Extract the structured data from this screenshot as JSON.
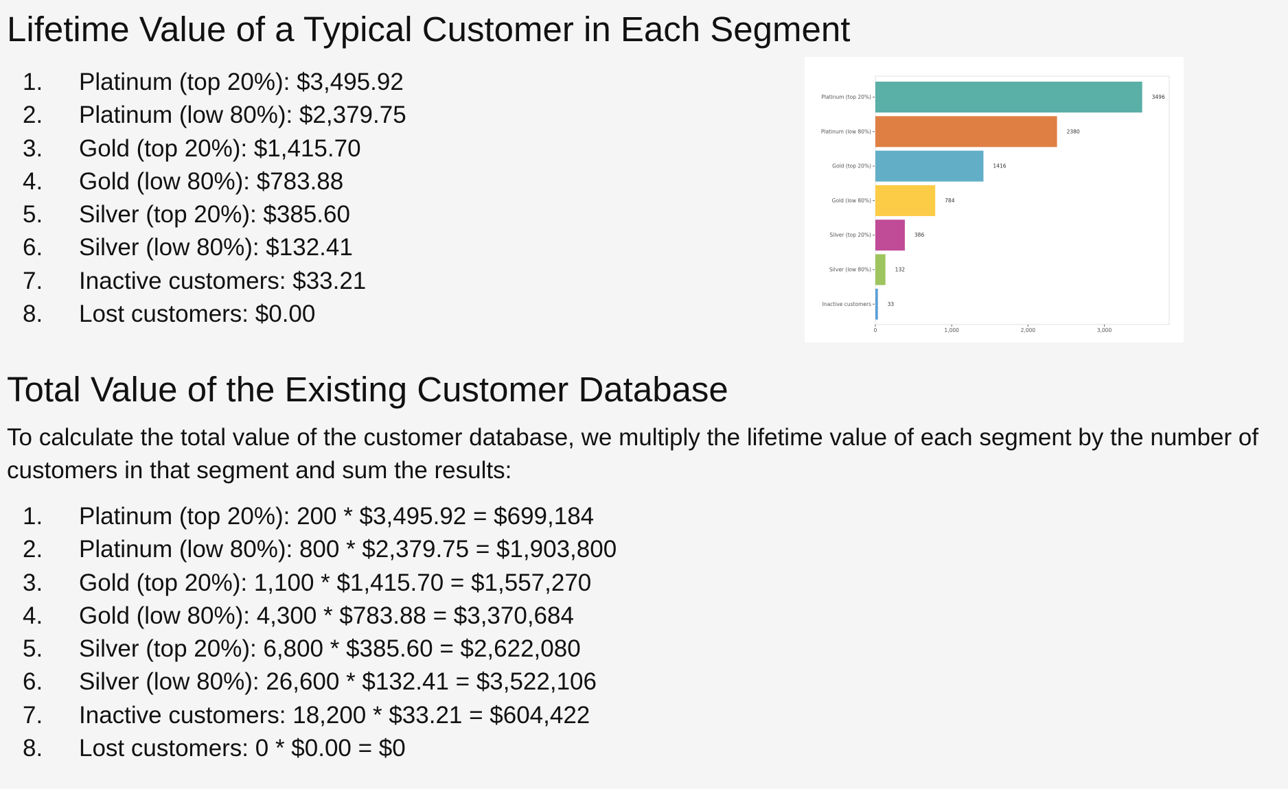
{
  "section1": {
    "title": "Lifetime Value of a Typical Customer in Each Segment",
    "items": [
      {
        "num": "1.",
        "text": "Platinum (top 20%): $3,495.92"
      },
      {
        "num": "2.",
        "text": "Platinum (low 80%): $2,379.75"
      },
      {
        "num": "3.",
        "text": "Gold (top 20%): $1,415.70"
      },
      {
        "num": "4.",
        "text": "Gold (low 80%): $783.88"
      },
      {
        "num": "5.",
        "text": "Silver (top 20%): $385.60"
      },
      {
        "num": "6.",
        "text": "Silver (low 80%): $132.41"
      },
      {
        "num": "7.",
        "text": "Inactive customers: $33.21"
      },
      {
        "num": "8.",
        "text": "Lost customers: $0.00"
      }
    ]
  },
  "section2": {
    "title": "Total Value of the Existing Customer Database",
    "intro": "To calculate the total value of the customer database, we multiply the lifetime value of each segment by the number of customers in that segment and sum the results:",
    "items": [
      {
        "num": "1.",
        "text": "Platinum (top 20%): 200 * $3,495.92 = $699,184"
      },
      {
        "num": "2.",
        "text": "Platinum (low 80%): 800 * $2,379.75 = $1,903,800"
      },
      {
        "num": "3.",
        "text": "Gold (top 20%): 1,100 * $1,415.70 = $1,557,270"
      },
      {
        "num": "4.",
        "text": "Gold (low 80%): 4,300 * $783.88 = $3,370,684"
      },
      {
        "num": "5.",
        "text": "Silver (top 20%): 6,800 * $385.60 = $2,622,080"
      },
      {
        "num": "6.",
        "text": "Silver (low 80%): 26,600 * $132.41 = $3,522,106"
      },
      {
        "num": "7.",
        "text": "Inactive customers: 18,200 * $33.21 = $604,422"
      },
      {
        "num": "8.",
        "text": "Lost customers: 0 * $0.00 = $0"
      }
    ]
  },
  "chart_data": {
    "type": "bar",
    "orientation": "horizontal",
    "categories": [
      "Platinum (top 20%)",
      "Platinum (low 80%)",
      "Gold (top 20%)",
      "Gold (low 80%)",
      "Silver (top 20%)",
      "Silver (low 80%)",
      "Inactive customers"
    ],
    "values": [
      3496,
      2380,
      1416,
      784,
      386,
      132,
      33
    ],
    "data_labels": [
      "3496",
      "2380",
      "1416",
      "784",
      "386",
      "132",
      "33"
    ],
    "colors": [
      "#5aafa6",
      "#e07f44",
      "#62aec7",
      "#fdcc46",
      "#c04b96",
      "#9ec45e",
      "#5b9fd6"
    ],
    "xticks": [
      0,
      1000,
      2000,
      3000
    ],
    "xtick_labels": [
      "0",
      "1,000",
      "2,000",
      "3,000"
    ],
    "xlim": [
      0,
      3850
    ],
    "grid": false,
    "legend": "none"
  }
}
